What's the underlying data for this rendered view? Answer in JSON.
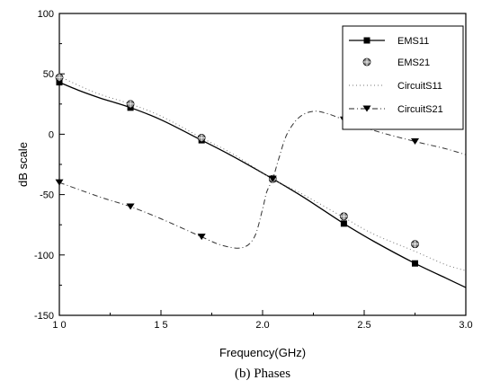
{
  "chart_data": {
    "type": "line",
    "xlabel": "Frequency(GHz)",
    "ylabel": "dB scale",
    "caption": "(b) Phases",
    "xlim": [
      1.0,
      3.0
    ],
    "ylim": [
      -150,
      100
    ],
    "x_ticks": [
      1.0,
      1.5,
      2.0,
      2.5,
      3.0
    ],
    "x_tick_labels": [
      "1 0",
      "1 5",
      "2.0",
      "2.5",
      "3.0"
    ],
    "y_ticks": [
      100,
      50,
      0,
      -50,
      -100,
      -150
    ],
    "y_tick_labels": [
      "100",
      "50",
      "0",
      "-50",
      "-100",
      "-150"
    ],
    "grid": false,
    "legend_position": "top-right",
    "legend": [
      {
        "label": "EMS11",
        "marker": "square",
        "line": "solid"
      },
      {
        "label": "EMS21",
        "marker": "circle-cross",
        "line": "none"
      },
      {
        "label": "CircuitS11",
        "marker": "none",
        "line": "dotted"
      },
      {
        "label": "CircuitS21",
        "marker": "triangle-down",
        "line": "dashdot"
      }
    ],
    "series": [
      {
        "name": "EMS11",
        "marker": "square",
        "line": "solid",
        "x": [
          1.0,
          1.1,
          1.2,
          1.35,
          1.5,
          1.7,
          1.85,
          2.05,
          2.2,
          2.4,
          2.55,
          2.75,
          2.9,
          3.0
        ],
        "y": [
          43,
          36,
          30,
          22,
          12,
          -5,
          -18,
          -37,
          -52,
          -74,
          -89,
          -107,
          -119,
          -127
        ],
        "markers_at": [
          1.0,
          1.35,
          1.7,
          2.05,
          2.4,
          2.75
        ]
      },
      {
        "name": "EMS21",
        "marker": "circle-cross",
        "line": "none",
        "x": [
          1.0,
          1.35,
          1.7,
          2.05,
          2.4,
          2.75
        ],
        "y": [
          47,
          25,
          -3,
          -37,
          -68,
          -91
        ]
      },
      {
        "name": "CircuitS11",
        "marker": "none",
        "line": "dotted",
        "x": [
          1.0,
          1.1,
          1.2,
          1.35,
          1.5,
          1.7,
          1.85,
          2.05,
          2.2,
          2.4,
          2.55,
          2.75,
          2.9,
          3.0
        ],
        "y": [
          48,
          40,
          33,
          25,
          15,
          -3,
          -16,
          -37,
          -50,
          -69,
          -83,
          -97,
          -108,
          -113
        ]
      },
      {
        "name": "CircuitS21",
        "marker": "triangle-down",
        "line": "dashdot",
        "x": [
          1.0,
          1.2,
          1.35,
          1.5,
          1.7,
          1.8,
          1.9,
          1.96,
          2.0,
          2.02,
          2.05,
          2.08,
          2.12,
          2.18,
          2.25,
          2.32,
          2.4,
          2.55,
          2.75,
          2.9,
          3.0
        ],
        "y": [
          -40,
          -52,
          -60,
          -70,
          -85,
          -92,
          -94,
          -85,
          -62,
          -48,
          -37,
          -20,
          0,
          14,
          19,
          17,
          12,
          3,
          -6,
          -12,
          -17
        ],
        "markers_at": [
          1.0,
          1.35,
          1.7,
          2.05,
          2.4,
          2.75
        ]
      }
    ]
  }
}
